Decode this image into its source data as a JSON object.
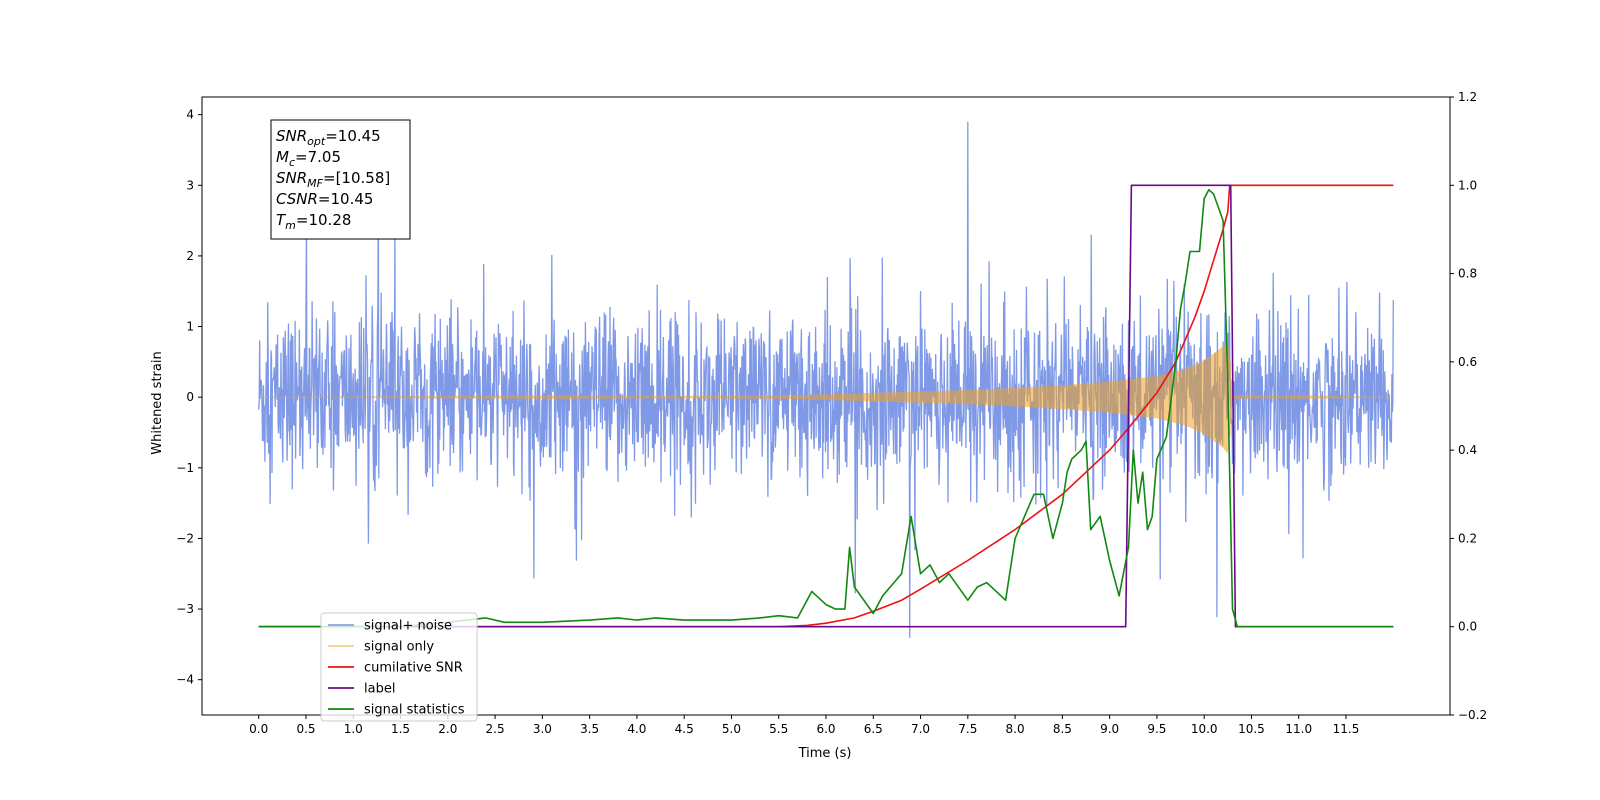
{
  "chart_data": {
    "type": "line",
    "xlabel": "Time (s)",
    "ylabel": "Whitened strain",
    "xlim": [
      -0.6,
      12.6
    ],
    "ylim": [
      -4.5,
      4.25
    ],
    "y2lim": [
      -0.2,
      1.2
    ],
    "x_ticks": [
      0.0,
      0.5,
      1.0,
      1.5,
      2.0,
      2.5,
      3.0,
      3.5,
      4.0,
      4.5,
      5.0,
      5.5,
      6.0,
      6.5,
      7.0,
      7.5,
      8.0,
      8.5,
      9.0,
      9.5,
      10.0,
      10.5,
      11.0,
      11.5
    ],
    "x_tick_labels": [
      "0.0",
      "0.5",
      "1.0",
      "1.5",
      "2.0",
      "2.5",
      "3.0",
      "3.5",
      "4.0",
      "4.5",
      "5.0",
      "5.5",
      "6.0",
      "6.5",
      "7.0",
      "7.5",
      "8.0",
      "8.5",
      "9.0",
      "9.5",
      "10.0",
      "10.5",
      "11.0",
      "11.5"
    ],
    "y_ticks": [
      -4,
      -3,
      -2,
      -1,
      0,
      1,
      2,
      3,
      4
    ],
    "y_tick_labels": [
      "−4",
      "−3",
      "−2",
      "−1",
      "0",
      "1",
      "2",
      "3",
      "4"
    ],
    "y2_ticks": [
      -0.2,
      0.0,
      0.2,
      0.4,
      0.6,
      0.8,
      1.0,
      1.2
    ],
    "y2_tick_labels": [
      "−0.2",
      "0.0",
      "0.2",
      "0.4",
      "0.6",
      "0.8",
      "1.0",
      "1.2"
    ],
    "grid": false,
    "legend_position": "lower-left",
    "annotation": {
      "lines": [
        {
          "main": "SNR",
          "sub": "opt",
          "rest": "=10.45"
        },
        {
          "main": "M",
          "sub": "c",
          "rest": "=7.05"
        },
        {
          "main": "SNR",
          "sub": "MF",
          "rest": "=[10.58]"
        },
        {
          "main": "CSNR",
          "sub": "",
          "rest": "=10.45"
        },
        {
          "main": "T",
          "sub": "m",
          "rest": "=10.28"
        }
      ]
    },
    "series": [
      {
        "name": "signal+ noise",
        "axis": "left",
        "color": "#7894e6",
        "kind": "noise",
        "x_range": [
          0.0,
          12.0
        ],
        "typical_range": [
          -2.1,
          2.3
        ],
        "extreme_range": [
          -4.1,
          3.9
        ]
      },
      {
        "name": "signal only",
        "axis": "left",
        "color": "#f0a020",
        "kind": "chirp",
        "x": [
          0.0,
          5.5,
          6.0,
          6.5,
          7.0,
          7.5,
          8.0,
          8.5,
          9.0,
          9.5,
          9.8,
          10.0,
          10.1,
          10.2,
          10.25,
          10.28,
          10.3,
          12.0
        ],
        "amplitude": [
          0.0,
          0.02,
          0.04,
          0.06,
          0.08,
          0.1,
          0.13,
          0.17,
          0.22,
          0.3,
          0.4,
          0.52,
          0.62,
          0.72,
          0.8,
          0.5,
          0.02,
          0.0
        ]
      },
      {
        "name": "cumilative SNR",
        "axis": "right",
        "color": "#ee1111",
        "x": [
          0.0,
          5.5,
          5.8,
          6.0,
          6.3,
          6.5,
          6.8,
          7.0,
          7.5,
          8.0,
          8.5,
          9.0,
          9.2,
          9.5,
          9.7,
          9.9,
          10.0,
          10.1,
          10.2,
          10.25,
          10.27,
          10.3,
          12.0
        ],
        "values": [
          0.0,
          0.0,
          0.003,
          0.008,
          0.02,
          0.035,
          0.06,
          0.085,
          0.15,
          0.22,
          0.3,
          0.4,
          0.45,
          0.53,
          0.6,
          0.7,
          0.76,
          0.83,
          0.9,
          0.94,
          1.0,
          1.0,
          1.0
        ]
      },
      {
        "name": "label",
        "axis": "right",
        "color": "#6a0a8a",
        "x": [
          0.0,
          9.17,
          9.23,
          10.28,
          10.33,
          12.0
        ],
        "values": [
          0.0,
          0.0,
          1.0,
          1.0,
          0.0,
          0.0
        ]
      },
      {
        "name": "signal statistics",
        "axis": "right",
        "color": "#118811",
        "x": [
          0.0,
          1.5,
          2.0,
          2.2,
          2.4,
          2.6,
          3.0,
          3.5,
          3.8,
          4.0,
          4.2,
          4.5,
          5.0,
          5.3,
          5.5,
          5.7,
          5.85,
          6.0,
          6.1,
          6.2,
          6.25,
          6.3,
          6.5,
          6.6,
          6.8,
          6.9,
          7.0,
          7.1,
          7.2,
          7.3,
          7.5,
          7.6,
          7.7,
          7.9,
          8.0,
          8.1,
          8.2,
          8.3,
          8.4,
          8.5,
          8.55,
          8.6,
          8.7,
          8.75,
          8.8,
          8.9,
          9.0,
          9.1,
          9.2,
          9.25,
          9.3,
          9.35,
          9.4,
          9.45,
          9.5,
          9.6,
          9.7,
          9.75,
          9.8,
          9.85,
          9.9,
          9.95,
          10.0,
          10.05,
          10.1,
          10.15,
          10.2,
          10.25,
          10.3,
          10.35,
          10.4,
          12.0
        ],
        "values": [
          0.0,
          0.0,
          0.01,
          0.015,
          0.02,
          0.01,
          0.01,
          0.015,
          0.02,
          0.015,
          0.02,
          0.015,
          0.015,
          0.02,
          0.025,
          0.02,
          0.08,
          0.05,
          0.04,
          0.04,
          0.18,
          0.09,
          0.03,
          0.07,
          0.12,
          0.25,
          0.12,
          0.14,
          0.1,
          0.12,
          0.06,
          0.09,
          0.1,
          0.06,
          0.2,
          0.25,
          0.3,
          0.3,
          0.2,
          0.28,
          0.35,
          0.38,
          0.4,
          0.42,
          0.22,
          0.25,
          0.15,
          0.07,
          0.18,
          0.4,
          0.28,
          0.35,
          0.22,
          0.25,
          0.38,
          0.43,
          0.6,
          0.72,
          0.78,
          0.85,
          0.85,
          0.85,
          0.97,
          0.99,
          0.98,
          0.95,
          0.92,
          0.55,
          0.04,
          0.0,
          0.0,
          0.0
        ]
      }
    ]
  }
}
